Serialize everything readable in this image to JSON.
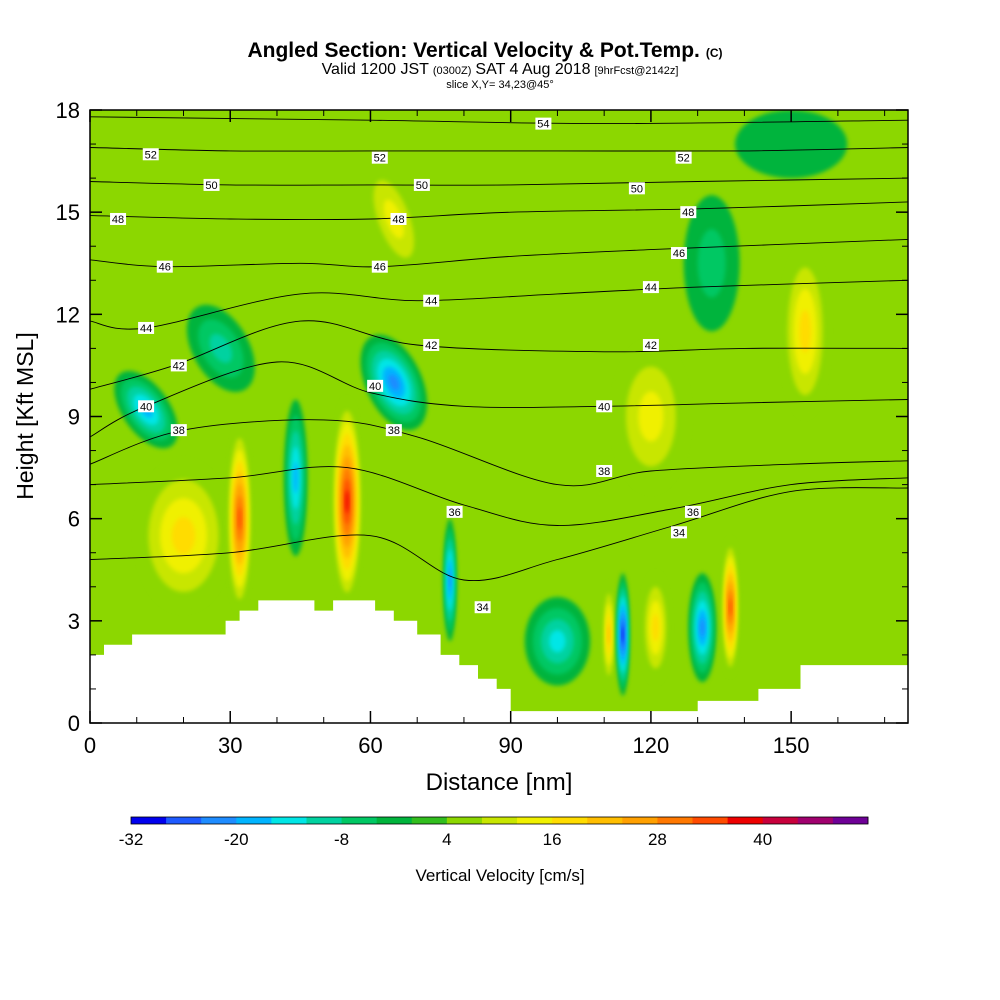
{
  "chart_data": {
    "type": "heatmap",
    "title": "Angled Section: Vertical Velocity & Pot.Temp.",
    "title_units": "(C)",
    "subtitle_parts": [
      "Valid 1200 JST",
      "(0300Z)",
      "SAT 4 Aug 2018",
      "[9hrFcst@2142z]"
    ],
    "slice_label": "slice X,Y= 34,23@45°",
    "xlabel": "Distance [nm]",
    "ylabel": "Height [Kft MSL]",
    "xlim": [
      0,
      175
    ],
    "ylim": [
      0,
      18
    ],
    "x_ticks": [
      {
        "v": 0,
        "t": "0"
      },
      {
        "v": 30,
        "t": "30"
      },
      {
        "v": 60,
        "t": "60"
      },
      {
        "v": 90,
        "t": "90"
      },
      {
        "v": 120,
        "t": "120"
      },
      {
        "v": 150,
        "t": "150"
      }
    ],
    "y_ticks": [
      {
        "v": 0,
        "t": "0"
      },
      {
        "v": 3,
        "t": "3"
      },
      {
        "v": 6,
        "t": "6"
      },
      {
        "v": 9,
        "t": "9"
      },
      {
        "v": 12,
        "t": "12"
      },
      {
        "v": 15,
        "t": "15"
      },
      {
        "v": 18,
        "t": "18"
      }
    ],
    "grid": false,
    "colorbar": {
      "label": "Vertical Velocity [cm/s]",
      "colors": [
        "#0000ee",
        "#1e5aff",
        "#1e8cff",
        "#00b4ff",
        "#00e6e6",
        "#00d2a0",
        "#00c864",
        "#00b43c",
        "#32be1e",
        "#8cd700",
        "#c8e600",
        "#f0f000",
        "#ffdc00",
        "#ffbe00",
        "#ffa000",
        "#ff7800",
        "#ff4b00",
        "#ee0000",
        "#c8003c",
        "#a0006e",
        "#6e0096"
      ],
      "tick_labels": [
        {
          "i": 0,
          "t": "-32"
        },
        {
          "i": 3,
          "t": "-20"
        },
        {
          "i": 6,
          "t": "-8"
        },
        {
          "i": 9,
          "t": "4"
        },
        {
          "i": 12,
          "t": "16"
        },
        {
          "i": 15,
          "t": "28"
        },
        {
          "i": 18,
          "t": "40"
        }
      ]
    },
    "background_color": "#8cd700",
    "terrain": [
      [
        0,
        2
      ],
      [
        3,
        2
      ],
      [
        3,
        2.3
      ],
      [
        9,
        2.3
      ],
      [
        9,
        2.6
      ],
      [
        29,
        2.6
      ],
      [
        29,
        3
      ],
      [
        32,
        3
      ],
      [
        32,
        3.3
      ],
      [
        36,
        3.3
      ],
      [
        36,
        3.6
      ],
      [
        48,
        3.6
      ],
      [
        48,
        3.3
      ],
      [
        52,
        3.3
      ],
      [
        52,
        3.6
      ],
      [
        61,
        3.6
      ],
      [
        61,
        3.3
      ],
      [
        65,
        3.3
      ],
      [
        65,
        3
      ],
      [
        70,
        3
      ],
      [
        70,
        2.6
      ],
      [
        75,
        2.6
      ],
      [
        75,
        2
      ],
      [
        79,
        2
      ],
      [
        79,
        1.7
      ],
      [
        83,
        1.7
      ],
      [
        83,
        1.3
      ],
      [
        87,
        1.3
      ],
      [
        87,
        1.0
      ],
      [
        90,
        1.0
      ],
      [
        90,
        0.35
      ],
      [
        130,
        0.35
      ],
      [
        130,
        0.65
      ],
      [
        143,
        0.65
      ],
      [
        143,
        1.0
      ],
      [
        152,
        1.0
      ],
      [
        152,
        1.7
      ],
      [
        175,
        1.7
      ]
    ],
    "velocity_features": [
      {
        "x": 12,
        "y": 9.2,
        "rx": 5,
        "ry": 1.3,
        "rot": -35,
        "v": -18
      },
      {
        "x": 28,
        "y": 11.0,
        "rx": 6,
        "ry": 1.4,
        "rot": -30,
        "v": -12
      },
      {
        "x": 20,
        "y": 5.5,
        "rx": 10,
        "ry": 2.2,
        "rot": 0,
        "v": 14
      },
      {
        "x": 32,
        "y": 6.0,
        "rx": 2.6,
        "ry": 2.7,
        "rot": 0,
        "v": 30
      },
      {
        "x": 44,
        "y": 7.2,
        "rx": 2.5,
        "ry": 2.3,
        "rot": 0,
        "v": -20
      },
      {
        "x": 55,
        "y": 6.5,
        "rx": 3.2,
        "ry": 3.0,
        "rot": 0,
        "v": 36
      },
      {
        "x": 65,
        "y": 10.0,
        "rx": 6,
        "ry": 1.5,
        "rot": -25,
        "v": -22
      },
      {
        "x": 65,
        "y": 14.8,
        "rx": 5,
        "ry": 1.8,
        "rot": -20,
        "v": 12
      },
      {
        "x": 77,
        "y": 4.2,
        "rx": 1.4,
        "ry": 1.8,
        "rot": 0,
        "v": -22
      },
      {
        "x": 100,
        "y": 2.4,
        "rx": 7,
        "ry": 1.3,
        "rot": 0,
        "v": -14
      },
      {
        "x": 111,
        "y": 2.6,
        "rx": 1.3,
        "ry": 1.5,
        "rot": 0,
        "v": 20
      },
      {
        "x": 114,
        "y": 2.6,
        "rx": 1.4,
        "ry": 1.8,
        "rot": 0,
        "v": -30
      },
      {
        "x": 121,
        "y": 2.8,
        "rx": 3,
        "ry": 1.6,
        "rot": 0,
        "v": 16
      },
      {
        "x": 131,
        "y": 2.8,
        "rx": 3,
        "ry": 1.6,
        "rot": 0,
        "v": -24
      },
      {
        "x": 137,
        "y": 3.4,
        "rx": 1.8,
        "ry": 2.0,
        "rot": 0,
        "v": 30
      },
      {
        "x": 120,
        "y": 9.0,
        "rx": 8,
        "ry": 2.2,
        "rot": 0,
        "v": 12
      },
      {
        "x": 153,
        "y": 11.5,
        "rx": 5,
        "ry": 2.5,
        "rot": 0,
        "v": 14
      },
      {
        "x": 133,
        "y": 13.5,
        "rx": 6,
        "ry": 2.0,
        "rot": 0,
        "v": -8
      },
      {
        "x": 150,
        "y": 17.0,
        "rx": 12,
        "ry": 1.0,
        "rot": 0,
        "v": -5
      }
    ],
    "isentropes": [
      {
        "label": "34",
        "pts": [
          [
            0,
            4.8
          ],
          [
            30,
            5.0
          ],
          [
            60,
            5.5
          ],
          [
            80,
            4.2
          ],
          [
            100,
            4.8
          ],
          [
            125,
            5.8
          ],
          [
            150,
            6.8
          ],
          [
            175,
            6.9
          ]
        ],
        "labels": [
          [
            84,
            3.4
          ],
          [
            126,
            5.6
          ]
        ]
      },
      {
        "label": "36",
        "pts": [
          [
            0,
            7.0
          ],
          [
            30,
            7.2
          ],
          [
            55,
            7.5
          ],
          [
            80,
            6.4
          ],
          [
            100,
            5.8
          ],
          [
            125,
            6.3
          ],
          [
            150,
            7.0
          ],
          [
            175,
            7.2
          ]
        ],
        "labels": [
          [
            78,
            6.2
          ],
          [
            129,
            6.2
          ]
        ]
      },
      {
        "label": "38",
        "pts": [
          [
            0,
            7.6
          ],
          [
            20,
            8.6
          ],
          [
            50,
            8.9
          ],
          [
            70,
            8.4
          ],
          [
            100,
            7.0
          ],
          [
            120,
            7.4
          ],
          [
            150,
            7.6
          ],
          [
            175,
            7.7
          ]
        ],
        "labels": [
          [
            19,
            8.6
          ],
          [
            65,
            8.6
          ],
          [
            110,
            7.4
          ]
        ]
      },
      {
        "label": "40",
        "pts": [
          [
            0,
            8.4
          ],
          [
            12,
            9.3
          ],
          [
            40,
            10.6
          ],
          [
            60,
            9.7
          ],
          [
            80,
            9.3
          ],
          [
            110,
            9.3
          ],
          [
            140,
            9.4
          ],
          [
            175,
            9.5
          ]
        ],
        "labels": [
          [
            12,
            9.3
          ],
          [
            61,
            9.9
          ],
          [
            110,
            9.3
          ]
        ]
      },
      {
        "label": "42",
        "pts": [
          [
            0,
            9.8
          ],
          [
            18,
            10.5
          ],
          [
            45,
            11.8
          ],
          [
            70,
            11.1
          ],
          [
            110,
            10.9
          ],
          [
            140,
            11.0
          ],
          [
            175,
            11.0
          ]
        ],
        "labels": [
          [
            19,
            10.5
          ],
          [
            73,
            11.1
          ],
          [
            120,
            11.1
          ]
        ]
      },
      {
        "label": "44",
        "pts": [
          [
            0,
            11.8
          ],
          [
            12,
            11.6
          ],
          [
            45,
            12.6
          ],
          [
            70,
            12.4
          ],
          [
            100,
            12.6
          ],
          [
            130,
            12.8
          ],
          [
            175,
            13.0
          ]
        ],
        "labels": [
          [
            12,
            11.6
          ],
          [
            73,
            12.4
          ],
          [
            120,
            12.8
          ]
        ]
      },
      {
        "label": "46",
        "pts": [
          [
            0,
            13.6
          ],
          [
            16,
            13.4
          ],
          [
            45,
            13.5
          ],
          [
            62,
            13.4
          ],
          [
            90,
            13.7
          ],
          [
            120,
            13.9
          ],
          [
            175,
            14.2
          ]
        ],
        "labels": [
          [
            16,
            13.4
          ],
          [
            62,
            13.4
          ],
          [
            126,
            13.8
          ]
        ]
      },
      {
        "label": "48",
        "pts": [
          [
            0,
            14.9
          ],
          [
            30,
            14.8
          ],
          [
            60,
            14.8
          ],
          [
            90,
            15.0
          ],
          [
            130,
            15.1
          ],
          [
            175,
            15.3
          ]
        ],
        "labels": [
          [
            6,
            14.8
          ],
          [
            66,
            14.8
          ],
          [
            128,
            15.0
          ]
        ]
      },
      {
        "label": "50",
        "pts": [
          [
            0,
            15.9
          ],
          [
            30,
            15.8
          ],
          [
            60,
            15.8
          ],
          [
            90,
            15.8
          ],
          [
            130,
            15.9
          ],
          [
            175,
            16.0
          ]
        ],
        "labels": [
          [
            26,
            15.8
          ],
          [
            71,
            15.8
          ],
          [
            117,
            15.7
          ]
        ]
      },
      {
        "label": "52",
        "pts": [
          [
            0,
            16.9
          ],
          [
            30,
            16.8
          ],
          [
            60,
            16.8
          ],
          [
            100,
            16.8
          ],
          [
            140,
            16.8
          ],
          [
            175,
            16.9
          ]
        ],
        "labels": [
          [
            13,
            16.7
          ],
          [
            62,
            16.6
          ],
          [
            127,
            16.6
          ]
        ]
      },
      {
        "label": "54",
        "pts": [
          [
            0,
            17.8
          ],
          [
            60,
            17.7
          ],
          [
            110,
            17.6
          ],
          [
            175,
            17.7
          ]
        ],
        "labels": [
          [
            97,
            17.6
          ]
        ]
      }
    ]
  }
}
